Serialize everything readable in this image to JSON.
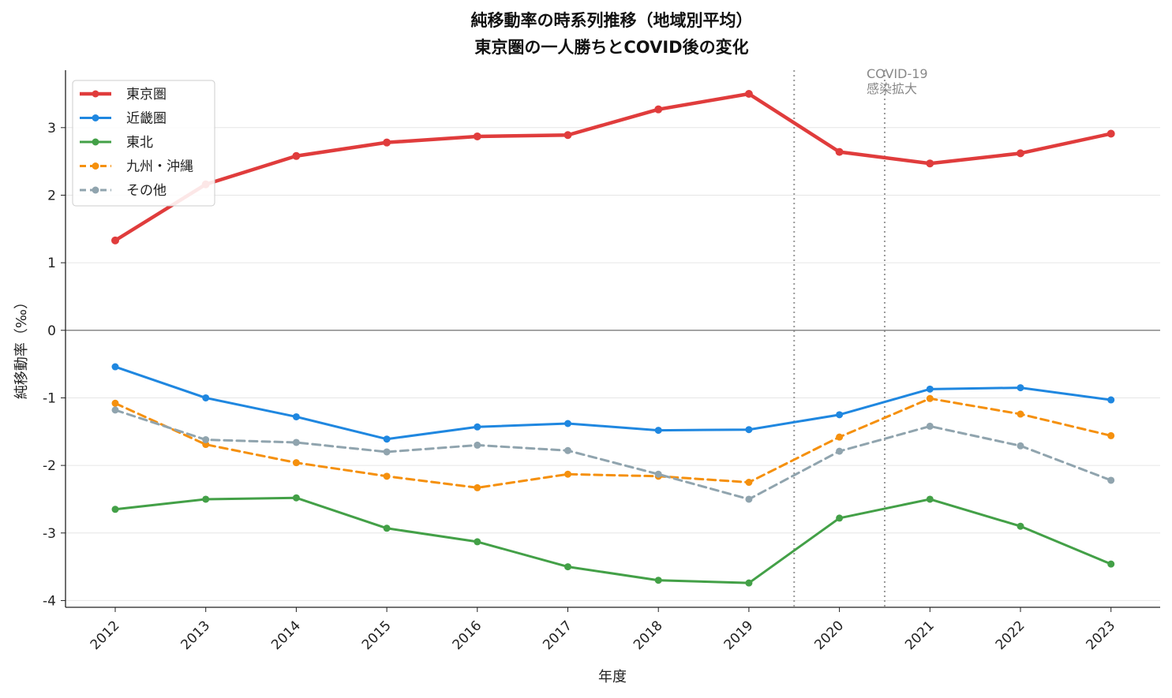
{
  "chart_data": {
    "type": "line",
    "title": "純移動率の時系列推移（地域別平均）",
    "subtitle": "東京圏の一人勝ちとCOVID後の変化",
    "xlabel": "年度",
    "ylabel": "純移動率（‰）",
    "x": [
      "2012",
      "2013",
      "2014",
      "2015",
      "2016",
      "2017",
      "2018",
      "2019",
      "2020",
      "2021",
      "2022",
      "2023"
    ],
    "yticks": [
      -4,
      -3,
      -2,
      -1,
      0,
      1,
      2,
      3
    ],
    "ylim": [
      -4.1,
      3.85
    ],
    "grid": "y",
    "legend": "top-left",
    "series": [
      {
        "name": "東京圏",
        "color": "#e03c3c",
        "dash": false,
        "width": 4.5,
        "values": [
          1.33,
          2.16,
          2.58,
          2.78,
          2.87,
          2.89,
          3.27,
          3.5,
          2.64,
          2.47,
          2.62,
          2.91
        ]
      },
      {
        "name": "近畿圏",
        "color": "#1f87e0",
        "dash": false,
        "width": 3,
        "values": [
          -0.54,
          -1.0,
          -1.28,
          -1.61,
          -1.43,
          -1.38,
          -1.48,
          -1.47,
          -1.25,
          -0.87,
          -0.85,
          -1.03
        ]
      },
      {
        "name": "東北",
        "color": "#43a047",
        "dash": false,
        "width": 3,
        "values": [
          -2.65,
          -2.5,
          -2.48,
          -2.93,
          -3.13,
          -3.5,
          -3.7,
          -3.74,
          -2.78,
          -2.5,
          -2.9,
          -3.46
        ]
      },
      {
        "name": "九州・沖縄",
        "color": "#f5900d",
        "dash": true,
        "width": 3,
        "values": [
          -1.08,
          -1.69,
          -1.96,
          -2.16,
          -2.33,
          -2.13,
          -2.16,
          -2.25,
          -1.58,
          -1.01,
          -1.24,
          -1.56
        ]
      },
      {
        "name": "その他",
        "color": "#90a4ae",
        "dash": true,
        "width": 3,
        "values": [
          -1.18,
          -1.62,
          -1.66,
          -1.8,
          -1.7,
          -1.78,
          -2.13,
          -2.5,
          -1.79,
          -1.42,
          -1.71,
          -2.22
        ]
      }
    ],
    "annotations": [
      {
        "text_lines": [
          "COVID-19",
          "感染拡大"
        ],
        "x_from": 2019.5,
        "x_to": 2020.5
      }
    ]
  }
}
